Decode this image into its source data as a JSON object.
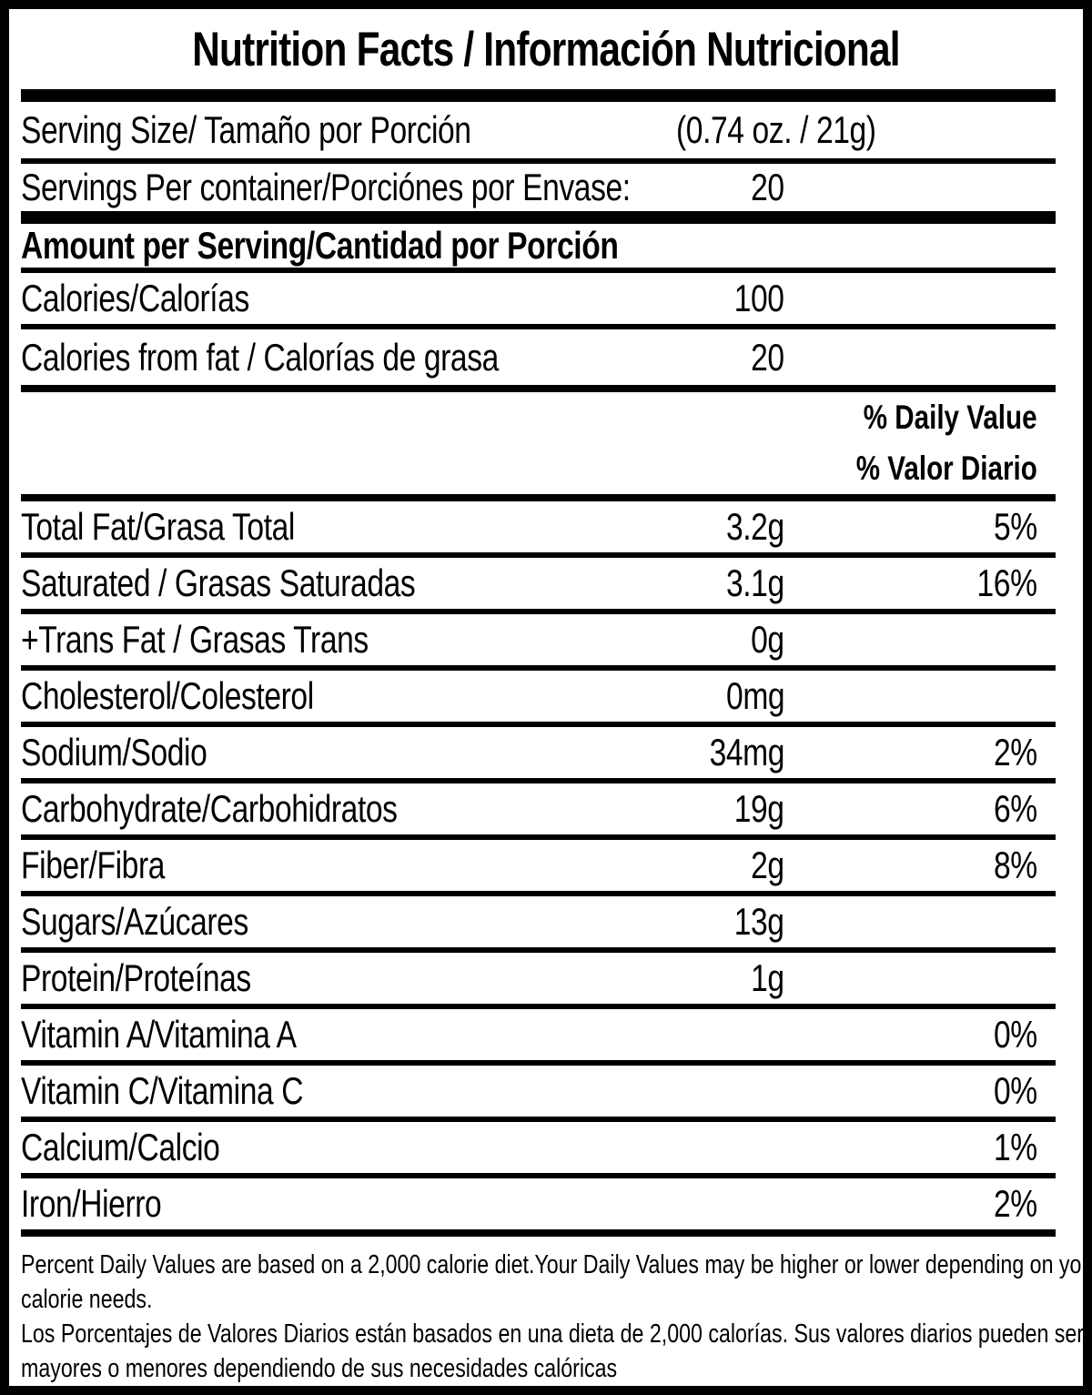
{
  "title": "Nutrition Facts / Información Nutricional",
  "serving_info": {
    "serving_size": {
      "label": "Serving Size/ Tamaño por Porción",
      "value": "(0.74 oz. / 21g)"
    },
    "servings_per_container": {
      "label": "Servings Per container/Porciónes por Envase:",
      "value": "20"
    }
  },
  "amount_section": {
    "heading": "Amount per Serving/Cantidad por Porción",
    "calories": {
      "label": "Calories/Calorías",
      "value": "100"
    },
    "calories_from_fat": {
      "label": "Calories from fat / Calorías de grasa",
      "value": "20"
    }
  },
  "daily_value_header": {
    "en": "% Daily Value",
    "es": "% Valor Diario"
  },
  "nutrients": [
    {
      "label": "Total Fat/Grasa Total",
      "amount": "3.2g",
      "daily_value": "5%"
    },
    {
      "label": "Saturated / Grasas Saturadas",
      "amount": "3.1g",
      "daily_value": "16%"
    },
    {
      "label": "+Trans Fat / Grasas Trans",
      "amount": "0g",
      "daily_value": ""
    },
    {
      "label": "Cholesterol/Colesterol",
      "amount": "0mg",
      "daily_value": ""
    },
    {
      "label": "Sodium/Sodio",
      "amount": "34mg",
      "daily_value": "2%"
    },
    {
      "label": "Carbohydrate/Carbohidratos",
      "amount": "19g",
      "daily_value": "6%"
    },
    {
      "label": "Fiber/Fibra",
      "amount": "2g",
      "daily_value": "8%"
    },
    {
      "label": "Sugars/Azúcares",
      "amount": "13g",
      "daily_value": ""
    },
    {
      "label": "Protein/Proteínas",
      "amount": "1g",
      "daily_value": ""
    },
    {
      "label": "Vitamin A/Vitamina A",
      "amount": "",
      "daily_value": "0%"
    },
    {
      "label": "Vitamin C/Vitamina C",
      "amount": "",
      "daily_value": "0%"
    },
    {
      "label": "Calcium/Calcio",
      "amount": "",
      "daily_value": "1%"
    },
    {
      "label": "Iron/Hierro",
      "amount": "",
      "daily_value": "2%"
    }
  ],
  "footnote": {
    "lines": [
      "Percent Daily Values are based on a 2,000 calorie diet.Your Daily Values may be higher or lower depending on your",
      "calorie needs.",
      "Los Porcentajes de Valores Diarios están basados en una dieta de 2,000 calorías. Sus valores diarios pueden ser",
      "mayores o menores dependiendo de sus necesidades calóricas"
    ]
  },
  "colors": {
    "text": "#000000",
    "background": "#ffffff",
    "border": "#000000"
  }
}
